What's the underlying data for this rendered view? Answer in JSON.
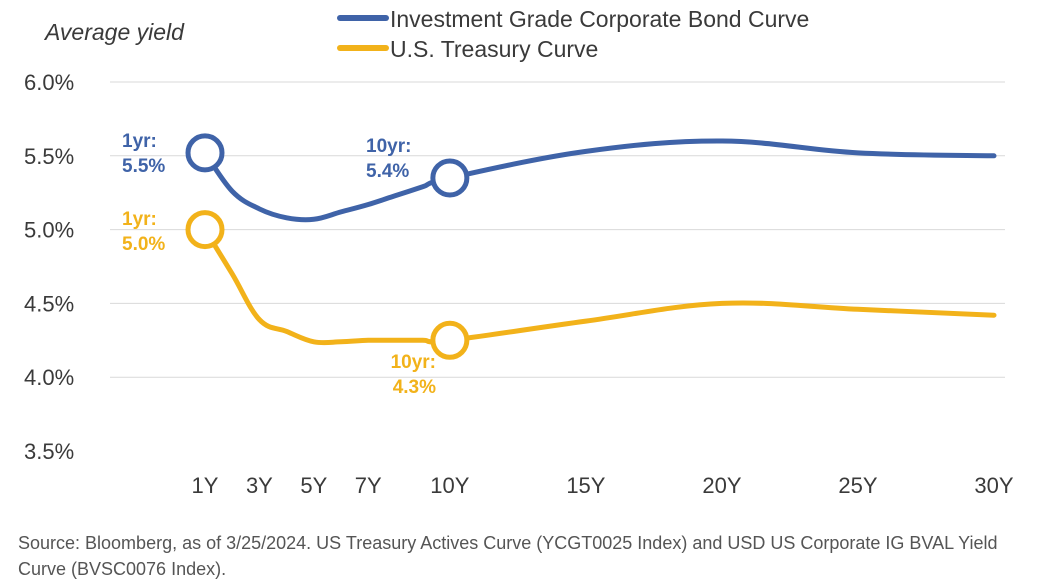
{
  "chart_data": {
    "type": "line",
    "ylabel": "Average yield",
    "categories": [
      "1Y",
      "3Y",
      "5Y",
      "7Y",
      "10Y",
      "15Y",
      "20Y",
      "25Y",
      "30Y"
    ],
    "x_years": [
      1,
      3,
      5,
      7,
      10,
      15,
      20,
      25,
      30
    ],
    "y_ticks": [
      "6.0%",
      "5.5%",
      "5.0%",
      "4.5%",
      "4.0%",
      "3.5%"
    ],
    "y_tick_values": [
      6.0,
      5.5,
      5.0,
      4.5,
      4.0,
      3.5
    ],
    "ylim": [
      3.5,
      6.0
    ],
    "grid": true,
    "legend_position": "top",
    "series": [
      {
        "name": "Investment Grade Corporate Bond Curve",
        "color": "#3f63a8",
        "x": [
          1,
          2,
          3,
          4,
          5,
          6,
          7,
          8,
          9,
          10,
          15,
          20,
          25,
          30
        ],
        "values": [
          5.52,
          5.26,
          5.14,
          5.08,
          5.07,
          5.12,
          5.17,
          5.23,
          5.29,
          5.35,
          5.53,
          5.6,
          5.52,
          5.5
        ]
      },
      {
        "name": "U.S. Treasury Curve",
        "color": "#f2b21a",
        "x": [
          1,
          2,
          3,
          4,
          5,
          6,
          7,
          8,
          9,
          10,
          15,
          20,
          25,
          30
        ],
        "values": [
          5.0,
          4.7,
          4.39,
          4.31,
          4.24,
          4.24,
          4.25,
          4.25,
          4.25,
          4.25,
          4.38,
          4.5,
          4.46,
          4.42
        ]
      }
    ],
    "annotations": [
      {
        "series": 0,
        "x": 1,
        "value": 5.52,
        "line1": "1yr:",
        "line2": "5.5%",
        "color": "#3f63a8"
      },
      {
        "series": 0,
        "x": 10,
        "value": 5.35,
        "line1": "10yr:",
        "line2": "5.4%",
        "color": "#3f63a8"
      },
      {
        "series": 1,
        "x": 1,
        "value": 5.0,
        "line1": "1yr:",
        "line2": "5.0%",
        "color": "#f2b21a"
      },
      {
        "series": 1,
        "x": 10,
        "value": 4.25,
        "line1": "10yr:",
        "line2": "4.3%",
        "color": "#f2b21a"
      }
    ]
  },
  "source": "Source:  Bloomberg, as of 3/25/2024. US Treasury Actives Curve (YCGT0025 Index) and USD US Corporate IG BVAL Yield Curve (BVSC0076 Index)."
}
